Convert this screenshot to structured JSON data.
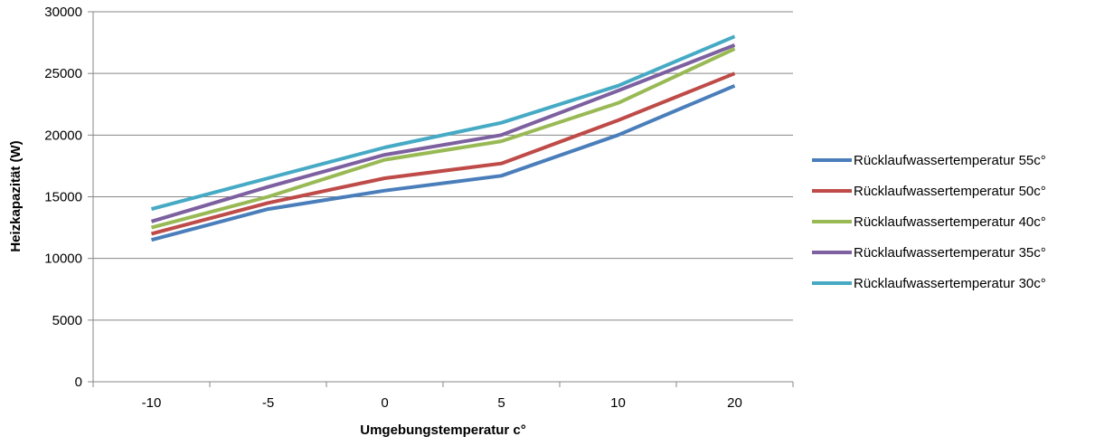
{
  "chart_data": {
    "type": "line",
    "title": "",
    "xlabel": "Umgebungstemperatur  c°",
    "ylabel": "Heizkapazität (W)",
    "categories": [
      "-10",
      "-5",
      "0",
      "5",
      "10",
      "20"
    ],
    "ylim": [
      0,
      30000
    ],
    "yticks": [
      0,
      5000,
      10000,
      15000,
      20000,
      25000,
      30000
    ],
    "grid": "horizontal",
    "legend_position": "right",
    "series": [
      {
        "name": "Rücklaufwassertemperatur 55c°",
        "color": "#4a7ebb",
        "values": [
          11500,
          14000,
          15500,
          16700,
          20000,
          24000
        ]
      },
      {
        "name": "Rücklaufwassertemperatur 50c°",
        "color": "#be4b48",
        "values": [
          12000,
          14500,
          16500,
          17700,
          21200,
          25000
        ]
      },
      {
        "name": "Rücklaufwassertemperatur 40c°",
        "color": "#98b954",
        "values": [
          12500,
          15000,
          18000,
          19500,
          22600,
          27000
        ]
      },
      {
        "name": "Rücklaufwassertemperatur 35c°",
        "color": "#7d60a0",
        "values": [
          13000,
          15800,
          18400,
          20000,
          23600,
          27300
        ]
      },
      {
        "name": "Rücklaufwassertemperatur 30c°",
        "color": "#46aac5",
        "values": [
          14000,
          16500,
          19000,
          21000,
          24000,
          28000
        ]
      }
    ]
  }
}
